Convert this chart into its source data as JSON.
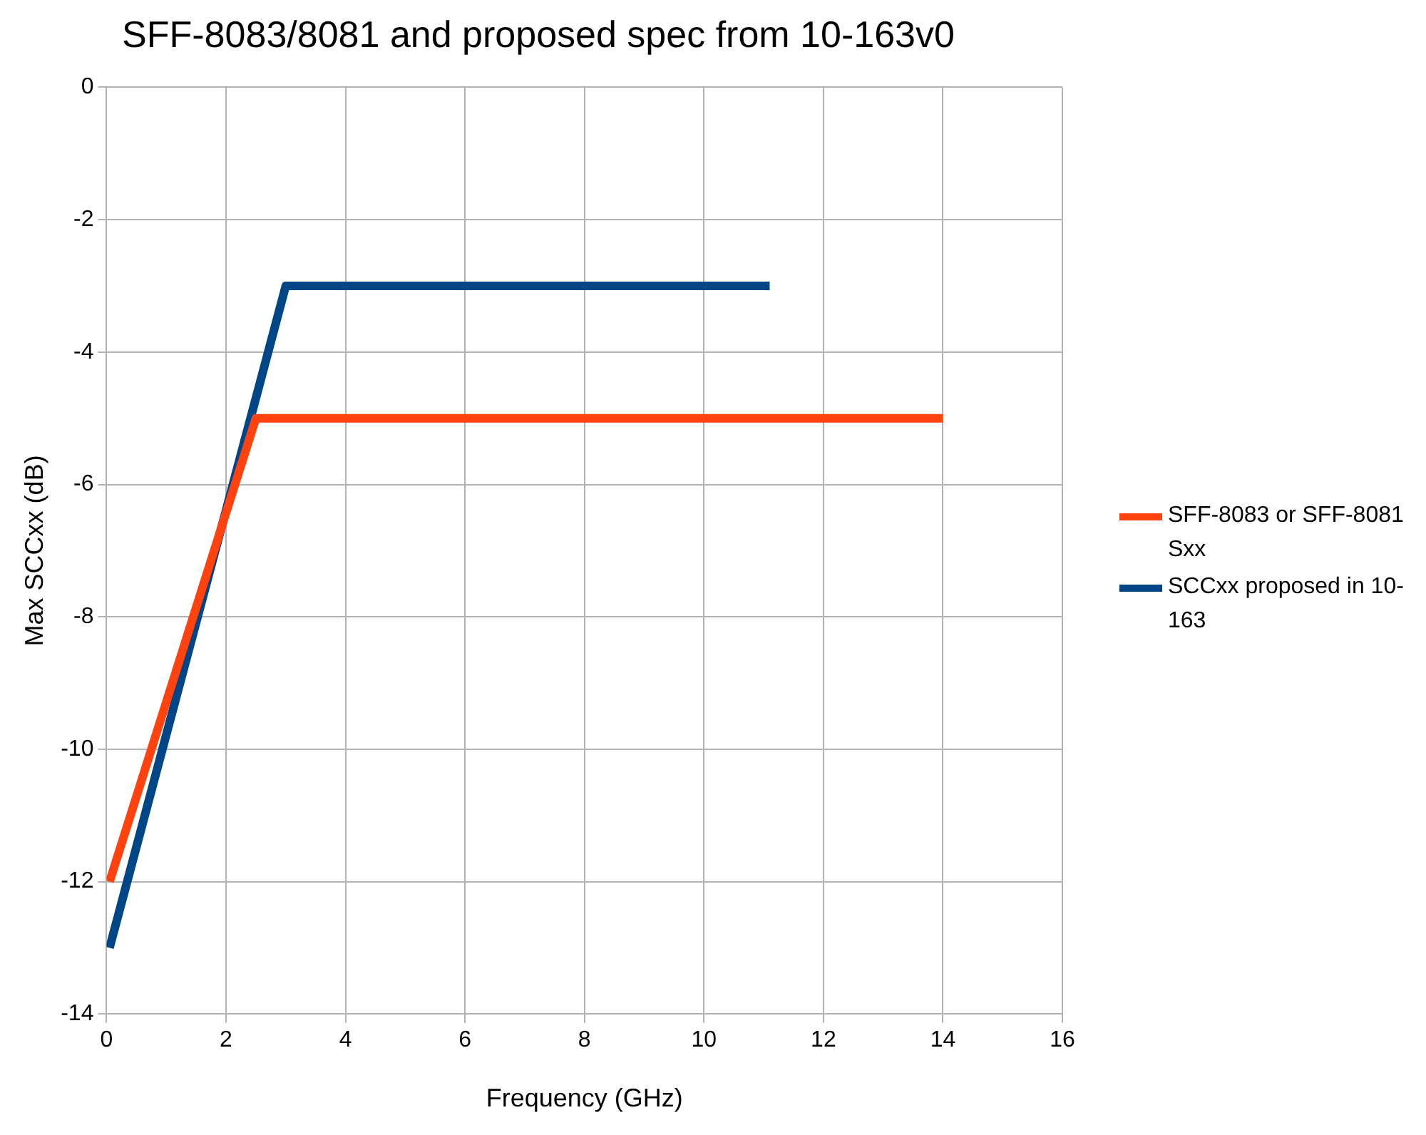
{
  "chart_data": {
    "type": "line",
    "title": "SFF-8083/8081 and proposed spec from 10-163v0",
    "xlabel": "Frequency (GHz)",
    "ylabel": "Max SCCxx (dB)",
    "series": [
      {
        "name": "SFF-8083 or SFF-8081 Sxx",
        "color": "#ff420e",
        "x": [
          0.05,
          2.5,
          14
        ],
        "values": [
          -12,
          -5,
          -5
        ]
      },
      {
        "name": "SCCxx proposed in 10-163",
        "color": "#004586",
        "x": [
          0.05,
          3,
          11.1
        ],
        "values": [
          -13,
          -3,
          -3
        ]
      }
    ],
    "xlim": [
      0,
      16
    ],
    "xticks": [
      0,
      2,
      4,
      6,
      8,
      10,
      12,
      14,
      16
    ],
    "ylim": [
      -14,
      0
    ],
    "yticks": [
      -14,
      -12,
      -10,
      -8,
      -6,
      -4,
      -2,
      0
    ],
    "grid": true,
    "legend": "right",
    "marker": "none",
    "line_style": "solid"
  }
}
